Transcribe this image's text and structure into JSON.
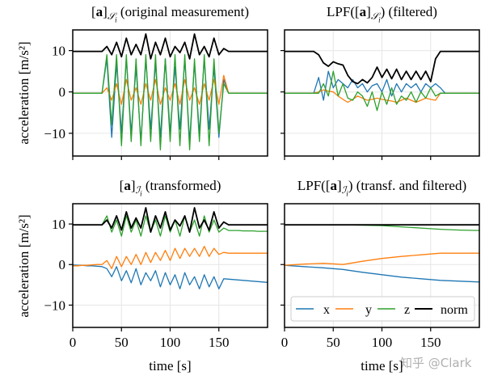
{
  "colors": {
    "x": "#1f77b4",
    "y": "#ff7f0e",
    "z": "#2ca02c",
    "norm": "#000000",
    "grid": "#e6e6e6"
  },
  "watermark": "知乎 @Clark",
  "chart_data": [
    {
      "type": "line",
      "title": {
        "pre": "[",
        "bold": "a",
        "post": "]",
        "sub": "𝒮",
        "subsub": "i",
        "rest": " (original measurement)"
      },
      "xlabel": "",
      "ylabel": "acceleration [m/s²]",
      "xlim": [
        0,
        200
      ],
      "ylim": [
        -15.5,
        15
      ],
      "xticks": [
        0,
        50,
        100,
        150
      ],
      "yticks": [
        -10,
        0,
        10
      ],
      "show_xticklabels": false,
      "show_yticklabels": true,
      "grid": true,
      "t": [
        0,
        5,
        10,
        15,
        20,
        25,
        30,
        35,
        40,
        45,
        50,
        55,
        60,
        65,
        70,
        75,
        80,
        85,
        90,
        95,
        100,
        105,
        110,
        115,
        120,
        125,
        130,
        135,
        140,
        145,
        150,
        155,
        160,
        165,
        170,
        175,
        180,
        185,
        190,
        195,
        200
      ],
      "series": [
        {
          "key": "x",
          "values": [
            -0.3,
            -0.3,
            -0.3,
            -0.3,
            -0.3,
            -0.3,
            -0.3,
            8,
            -11,
            7,
            -10,
            8,
            -10,
            6,
            -12,
            8,
            -9,
            7,
            -11,
            8,
            -10,
            6,
            -9,
            8,
            -12,
            7,
            -10,
            8,
            -9,
            6,
            -11,
            3,
            -0.3,
            -0.3,
            -0.3,
            -0.3,
            -0.3,
            -0.3,
            -0.3,
            -0.3,
            -0.3
          ]
        },
        {
          "key": "y",
          "values": [
            -0.3,
            -0.3,
            -0.3,
            -0.3,
            -0.3,
            -0.3,
            -0.3,
            1,
            -2,
            2,
            -3,
            3,
            -2,
            1,
            -3,
            2,
            -2,
            3,
            -3,
            1,
            -2,
            2,
            -3,
            3,
            -2,
            1,
            -3,
            2,
            -2,
            3,
            -3,
            4,
            -0.3,
            -0.3,
            -0.3,
            -0.3,
            -0.3,
            -0.3,
            -0.3,
            -0.3,
            -0.3
          ]
        },
        {
          "key": "z",
          "values": [
            -0.3,
            -0.3,
            -0.3,
            -0.3,
            -0.3,
            -0.3,
            -0.3,
            9,
            -8,
            9,
            -13,
            9,
            -12,
            8,
            -13,
            9,
            -12,
            9,
            -14,
            8,
            -12,
            9,
            -13,
            9,
            -14,
            8,
            -12,
            9,
            -13,
            8,
            -10,
            2,
            -0.3,
            -0.3,
            -0.3,
            -0.3,
            -0.3,
            -0.3,
            -0.3,
            -0.3,
            -0.3
          ]
        },
        {
          "key": "norm",
          "values": [
            9.8,
            9.8,
            9.8,
            9.8,
            9.8,
            9.8,
            9.8,
            11,
            9,
            12,
            8.5,
            13,
            9,
            11.5,
            9,
            14,
            8,
            12,
            9,
            13,
            8.5,
            11,
            9.5,
            12,
            8,
            14,
            9,
            11,
            8.5,
            13,
            9,
            10.5,
            9.8,
            9.8,
            9.8,
            9.8,
            9.8,
            9.8,
            9.8,
            9.8,
            9.8
          ]
        }
      ]
    },
    {
      "type": "line",
      "title": {
        "pre": "LPF([",
        "bold": "a",
        "post": "]",
        "sub": "𝒮",
        "subsub": "i",
        "rest": ") (filtered)"
      },
      "xlabel": "",
      "ylabel": "",
      "xlim": [
        0,
        200
      ],
      "ylim": [
        -15.5,
        15
      ],
      "xticks": [
        0,
        50,
        100,
        150
      ],
      "yticks": [
        -10,
        0,
        10
      ],
      "show_xticklabels": false,
      "show_yticklabels": false,
      "grid": true,
      "t": [
        0,
        5,
        10,
        15,
        20,
        25,
        30,
        35,
        40,
        45,
        50,
        55,
        60,
        65,
        70,
        75,
        80,
        85,
        90,
        95,
        100,
        105,
        110,
        115,
        120,
        125,
        130,
        135,
        140,
        145,
        150,
        155,
        160,
        165,
        170,
        175,
        180,
        185,
        190,
        195,
        200
      ],
      "series": [
        {
          "key": "x",
          "values": [
            -0.3,
            -0.3,
            -0.3,
            -0.3,
            -0.3,
            -0.3,
            -0.3,
            3.5,
            -2,
            5,
            1,
            3,
            2,
            1,
            3,
            1,
            2,
            0,
            1.5,
            2,
            0,
            3,
            -1,
            2,
            0,
            2,
            1,
            2,
            0,
            2,
            1,
            2,
            1,
            -0.3,
            -0.3,
            -0.3,
            -0.3,
            -0.3,
            -0.3,
            -0.3,
            -0.3
          ]
        },
        {
          "key": "y",
          "values": [
            -0.3,
            -0.3,
            -0.3,
            -0.3,
            -0.3,
            -0.3,
            -0.3,
            0,
            0.5,
            0.2,
            0,
            -1,
            -1.8,
            -2.5,
            -1.8,
            -1,
            -1.5,
            -2,
            -1.8,
            -1.5,
            -1.8,
            -2,
            -2.2,
            -2.5,
            -2,
            -1.5,
            -2,
            -2.5,
            -2,
            -1.5,
            -1.8,
            -2,
            -0.3,
            -0.3,
            -0.3,
            -0.3,
            -0.3,
            -0.3,
            -0.3,
            -0.3,
            -0.3
          ]
        },
        {
          "key": "z",
          "values": [
            -0.3,
            -0.3,
            -0.3,
            -0.3,
            -0.3,
            -0.3,
            -0.3,
            -0.3,
            2,
            -1,
            5,
            -1,
            2,
            -1.5,
            -2,
            0,
            -1,
            -3.5,
            0,
            -4.5,
            0,
            -3,
            1,
            -3,
            -1,
            -2,
            0,
            -2.5,
            0,
            -1.5,
            1,
            -1,
            -0.3,
            -0.3,
            -0.3,
            -0.3,
            -0.3,
            -0.3,
            -0.3,
            -0.3,
            -0.3
          ]
        },
        {
          "key": "norm",
          "values": [
            9.8,
            9.8,
            9.8,
            9.8,
            9.8,
            9.8,
            9.8,
            9,
            7,
            6.2,
            7.3,
            6.8,
            6.5,
            4,
            2.5,
            2,
            3,
            2.2,
            3.5,
            6,
            3.5,
            5.5,
            3.2,
            5.5,
            3,
            5,
            3,
            5,
            3,
            5,
            2.5,
            8,
            9.8,
            9.8,
            9.8,
            9.8,
            9.8,
            9.8,
            9.8,
            9.8,
            9.8
          ]
        }
      ]
    },
    {
      "type": "line",
      "title": {
        "pre": "[",
        "bold": "a",
        "post": "]",
        "sub": "ℐ",
        "subsub": "i",
        "rest": " (transformed)"
      },
      "xlabel": "time [s]",
      "ylabel": "acceleration [m/s²]",
      "xlim": [
        0,
        200
      ],
      "ylim": [
        -15.5,
        15
      ],
      "xticks": [
        0,
        50,
        100,
        150
      ],
      "yticks": [
        -10,
        0,
        10
      ],
      "show_xticklabels": true,
      "show_yticklabels": true,
      "grid": true,
      "t": [
        0,
        5,
        10,
        15,
        20,
        25,
        30,
        35,
        40,
        45,
        50,
        55,
        60,
        65,
        70,
        75,
        80,
        85,
        90,
        95,
        100,
        105,
        110,
        115,
        120,
        125,
        130,
        135,
        140,
        145,
        150,
        155,
        160,
        165,
        170,
        175,
        180,
        185,
        190,
        195,
        200
      ],
      "series": [
        {
          "key": "x",
          "values": [
            -0.1,
            -0.2,
            -0.2,
            -0.3,
            -0.3,
            -0.4,
            -0.5,
            -1,
            -3,
            -0.5,
            -4,
            -1.5,
            -4.5,
            -1,
            -5,
            -2,
            -4,
            -1.5,
            -5.5,
            -2,
            -5,
            -2.5,
            -6,
            -2,
            -5,
            -3,
            -6,
            -2.5,
            -5.5,
            -3,
            -6,
            -3.5,
            -3.6,
            -3.7,
            -3.8,
            -3.9,
            -4,
            -4.1,
            -4.2,
            -4.3,
            -4.4
          ]
        },
        {
          "key": "y",
          "values": [
            -0.3,
            -0.3,
            -0.2,
            -0.2,
            -0.1,
            0,
            0,
            1,
            -1,
            2,
            -0.5,
            2,
            0,
            2.5,
            0,
            3,
            0.5,
            3,
            1,
            3.5,
            1,
            4,
            1.5,
            4,
            2,
            4,
            2,
            4.5,
            2,
            4,
            2.5,
            3,
            2.8,
            2.8,
            2.8,
            2.8,
            2.8,
            2.8,
            2.8,
            2.8,
            2.8
          ]
        },
        {
          "key": "z",
          "values": [
            9.8,
            9.8,
            9.8,
            9.8,
            9.8,
            9.8,
            9.8,
            12,
            8,
            11,
            7,
            12,
            8,
            11,
            7,
            12,
            8,
            11,
            7,
            12,
            8,
            11,
            7,
            12,
            8,
            11,
            7,
            12,
            8,
            11,
            8,
            9,
            8.4,
            8.4,
            8.4,
            8.3,
            8.3,
            8.3,
            8.2,
            8.2,
            8.2
          ]
        },
        {
          "key": "norm",
          "values": [
            9.8,
            9.8,
            9.8,
            9.8,
            9.8,
            9.8,
            9.8,
            11,
            9,
            12,
            8.5,
            13,
            9,
            11.5,
            9,
            14,
            8,
            12,
            9,
            13,
            8.5,
            11,
            9.5,
            12,
            8,
            14,
            9,
            11,
            8.5,
            13,
            9,
            10.5,
            9.8,
            9.8,
            9.8,
            9.8,
            9.8,
            9.8,
            9.8,
            9.8,
            9.8
          ]
        }
      ]
    },
    {
      "type": "line",
      "title": {
        "pre": "LPF([",
        "bold": "a",
        "post": "]",
        "sub": "ℐ",
        "subsub": "i",
        "rest": ") (transf. and filtered)"
      },
      "xlabel": "time [s]",
      "ylabel": "",
      "xlim": [
        0,
        200
      ],
      "ylim": [
        -15.5,
        15
      ],
      "xticks": [
        0,
        50,
        100,
        150
      ],
      "yticks": [
        -10,
        0,
        10
      ],
      "show_xticklabels": true,
      "show_yticklabels": false,
      "grid": true,
      "legend": {
        "placement": "lower-right",
        "entries": [
          "x",
          "y",
          "z",
          "norm"
        ]
      },
      "t": [
        0,
        20,
        40,
        60,
        80,
        100,
        120,
        140,
        160,
        180,
        200
      ],
      "series": [
        {
          "key": "x",
          "values": [
            -0.2,
            -0.5,
            -0.8,
            -1.2,
            -1.9,
            -2.5,
            -3.1,
            -3.5,
            -3.9,
            -4.1,
            -4.3
          ]
        },
        {
          "key": "y",
          "values": [
            -0.2,
            0.1,
            0.3,
            0,
            0.8,
            1.5,
            2,
            2.4,
            2.8,
            2.8,
            2.8
          ]
        },
        {
          "key": "z",
          "values": [
            9.8,
            9.8,
            9.8,
            9.8,
            9.7,
            9.6,
            9.3,
            9.0,
            8.7,
            8.5,
            8.4
          ]
        },
        {
          "key": "norm",
          "values": [
            9.8,
            9.8,
            9.8,
            9.8,
            9.8,
            9.8,
            9.8,
            9.8,
            9.8,
            9.8,
            9.8
          ]
        }
      ]
    }
  ]
}
